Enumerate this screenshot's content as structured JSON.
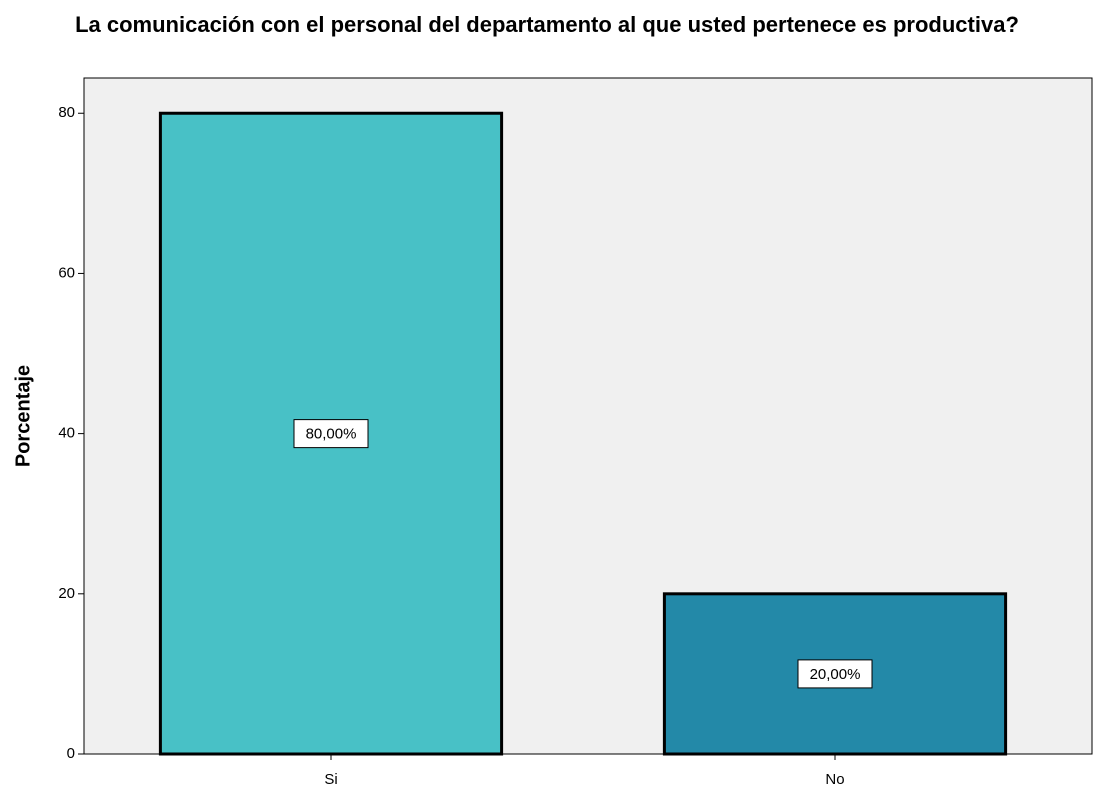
{
  "chart_data": {
    "type": "bar",
    "title": "La comunicación con el personal del departamento al que usted pertenece es productiva?",
    "y_label": "Porcentaje",
    "categories": [
      "Si",
      "No"
    ],
    "values": [
      80,
      20
    ],
    "value_labels": [
      "80,00%",
      "20,00%"
    ],
    "colors": [
      "#48c1c6",
      "#2389a8"
    ],
    "ylim": [
      0,
      84.4
    ],
    "yticks": [
      0,
      20,
      40,
      60,
      80
    ]
  }
}
